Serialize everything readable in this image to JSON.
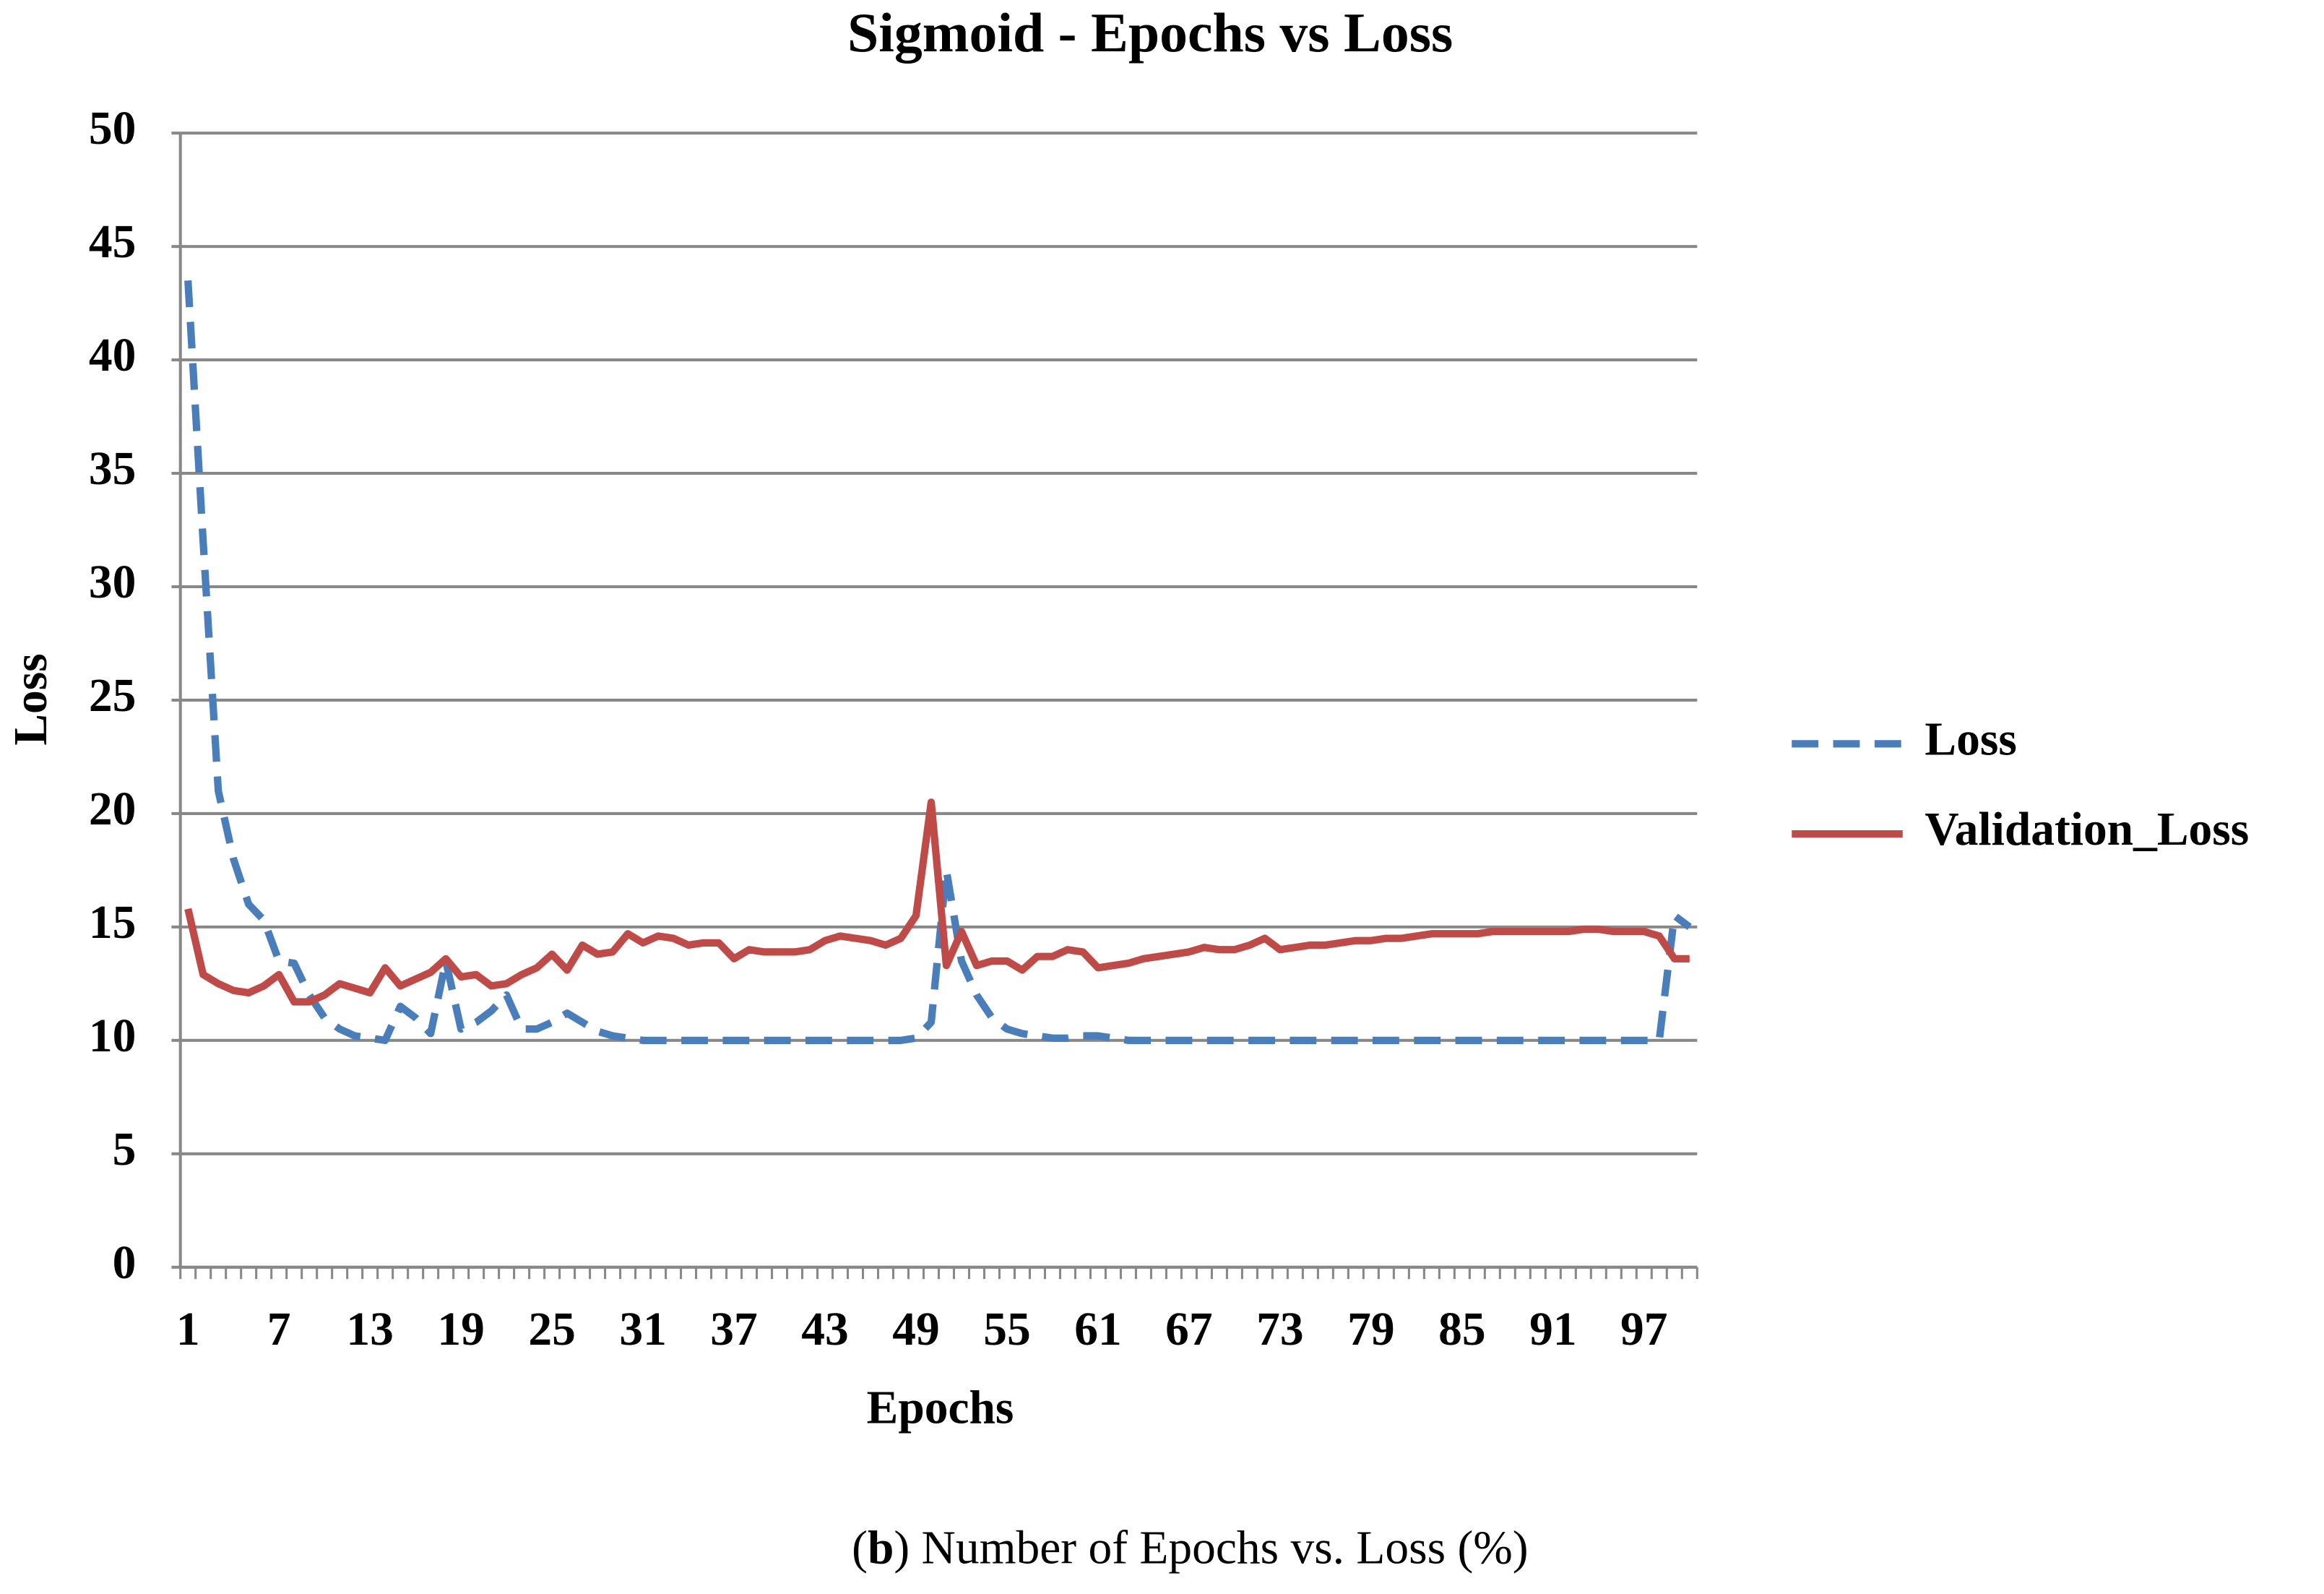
{
  "chart_data": {
    "type": "line",
    "title": "Sigmoid - Epochs vs Loss",
    "x_label": "Epochs",
    "y_label": "Loss",
    "categories": [
      1,
      null,
      null,
      null,
      null,
      null,
      7,
      null,
      null,
      null,
      null,
      null,
      13,
      null,
      null,
      null,
      null,
      null,
      19,
      null,
      null,
      null,
      null,
      null,
      25,
      null,
      null,
      null,
      null,
      null,
      31,
      null,
      null,
      null,
      null,
      null,
      37,
      null,
      null,
      null,
      null,
      null,
      43,
      null,
      null,
      null,
      null,
      null,
      49,
      null,
      null,
      null,
      null,
      null,
      55,
      null,
      null,
      null,
      null,
      null,
      61,
      null,
      null,
      null,
      null,
      null,
      67,
      null,
      null,
      null,
      null,
      null,
      73,
      null,
      null,
      null,
      null,
      null,
      79,
      null,
      null,
      null,
      null,
      null,
      85,
      null,
      null,
      null,
      null,
      null,
      91,
      null,
      null,
      null,
      null,
      null,
      97,
      null,
      null,
      null
    ],
    "series": [
      {
        "name": "Loss",
        "color": "#4a7ebb",
        "dashed": true,
        "values": [
          43.5,
          32,
          21,
          18,
          16,
          15.3,
          13.5,
          13.4,
          12,
          11,
          10.5,
          10.2,
          10.1,
          10,
          11.5,
          11,
          10.3,
          13.5,
          10.5,
          10.8,
          11.3,
          12,
          10.5,
          10.5,
          10.8,
          11.2,
          10.8,
          10.4,
          10.2,
          10.1,
          10,
          10,
          10,
          10,
          10,
          10,
          10,
          10,
          10,
          10,
          10,
          10,
          10,
          10,
          10,
          10,
          10,
          10,
          10.1,
          10.8,
          17.5,
          13.5,
          12,
          11,
          10.5,
          10.3,
          10.2,
          10.1,
          10.1,
          10.2,
          10.2,
          10.1,
          10,
          10,
          10,
          10,
          10,
          10,
          10,
          10,
          10,
          10,
          10,
          10,
          10,
          10,
          10,
          10,
          10,
          10,
          10,
          10,
          10,
          10,
          10,
          10,
          10,
          10,
          10,
          10,
          10,
          10,
          10,
          10,
          10,
          10,
          10,
          10,
          15.5,
          15
        ]
      },
      {
        "name": "Validation_Loss",
        "color": "#be4b48",
        "dashed": false,
        "values": [
          15.8,
          12.9,
          12.5,
          12.2,
          12.1,
          12.4,
          12.9,
          11.7,
          11.7,
          12,
          12.5,
          12.3,
          12.1,
          13.2,
          12.4,
          12.7,
          13,
          13.6,
          12.8,
          12.9,
          12.4,
          12.5,
          12.9,
          13.2,
          13.8,
          13.1,
          14.2,
          13.8,
          13.9,
          14.7,
          14.3,
          14.6,
          14.5,
          14.2,
          14.3,
          14.3,
          13.6,
          14,
          13.9,
          13.9,
          13.9,
          14,
          14.4,
          14.6,
          14.5,
          14.4,
          14.2,
          14.5,
          15.5,
          20.5,
          13.3,
          14.8,
          13.3,
          13.5,
          13.5,
          13.1,
          13.7,
          13.7,
          14,
          13.9,
          13.2,
          13.3,
          13.4,
          13.6,
          13.7,
          13.8,
          13.9,
          14.1,
          14,
          14,
          14.2,
          14.5,
          14,
          14.1,
          14.2,
          14.2,
          14.3,
          14.4,
          14.4,
          14.5,
          14.5,
          14.6,
          14.7,
          14.7,
          14.7,
          14.7,
          14.8,
          14.8,
          14.8,
          14.8,
          14.8,
          14.8,
          14.9,
          14.9,
          14.8,
          14.8,
          14.8,
          14.6,
          13.6,
          13.6
        ]
      }
    ],
    "ylim": [
      0,
      50
    ],
    "yticks": [
      0,
      5,
      10,
      15,
      20,
      25,
      30,
      35,
      40,
      45,
      50
    ],
    "grid": true,
    "legend": "right"
  },
  "caption": [
    "(",
    "b",
    ") Number of Epochs vs. Loss (%)"
  ]
}
